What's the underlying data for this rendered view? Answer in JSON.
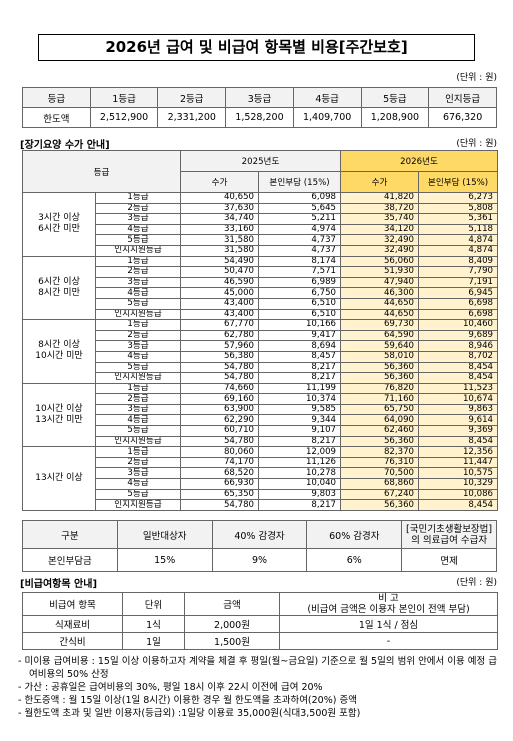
{
  "title": "2026년 급여 및 비급여 항목별 비용[주간보호]",
  "limit_table": {
    "unit": "(단위 : 원)",
    "header": [
      "등급",
      "1등급",
      "2등급",
      "3등급",
      "4등급",
      "5등급",
      "인지등급"
    ],
    "row": [
      "한도액",
      "2,512,900",
      "2,331,200",
      "1,528,200",
      "1,409,700",
      "1,208,900",
      "676,320"
    ]
  },
  "care_fees": {
    "heading": "[장기요양 수가 안내]",
    "unit": "(단위 : 원)",
    "grade_header": "등급",
    "years": [
      "2025년도",
      "2026년도"
    ],
    "subheaders": [
      "수가",
      "본인부담 (15%)",
      "수가",
      "본인부담 (15%)"
    ],
    "groups": [
      {
        "label": [
          "3시간 이상",
          "6시간 미만"
        ],
        "rows": [
          [
            "1등급",
            "40,650",
            "6,098",
            "41,820",
            "6,273"
          ],
          [
            "2등급",
            "37,630",
            "5,645",
            "38,720",
            "5,808"
          ],
          [
            "3등급",
            "34,740",
            "5,211",
            "35,740",
            "5,361"
          ],
          [
            "4등급",
            "33,160",
            "4,974",
            "34,120",
            "5,118"
          ],
          [
            "5등급",
            "31,580",
            "4,737",
            "32,490",
            "4,874"
          ],
          [
            "인지지원등급",
            "31,580",
            "4,737",
            "32,490",
            "4,874"
          ]
        ]
      },
      {
        "label": [
          "6시간 이상",
          "8시간 미만"
        ],
        "rows": [
          [
            "1등급",
            "54,490",
            "8,174",
            "56,060",
            "8,409"
          ],
          [
            "2등급",
            "50,470",
            "7,571",
            "51,930",
            "7,790"
          ],
          [
            "3등급",
            "46,590",
            "6,989",
            "47,940",
            "7,191"
          ],
          [
            "4등급",
            "45,000",
            "6,750",
            "46,300",
            "6,945"
          ],
          [
            "5등급",
            "43,400",
            "6,510",
            "44,650",
            "6,698"
          ],
          [
            "인지지원등급",
            "43,400",
            "6,510",
            "44,650",
            "6,698"
          ]
        ]
      },
      {
        "label": [
          "8시간 이상",
          "10시간 미만"
        ],
        "rows": [
          [
            "1등급",
            "67,770",
            "10,166",
            "69,730",
            "10,460"
          ],
          [
            "2등급",
            "62,780",
            "9,417",
            "64,590",
            "9,689"
          ],
          [
            "3등급",
            "57,960",
            "8,694",
            "59,640",
            "8,946"
          ],
          [
            "4등급",
            "56,380",
            "8,457",
            "58,010",
            "8,702"
          ],
          [
            "5등급",
            "54,780",
            "8,217",
            "56,360",
            "8,454"
          ],
          [
            "인지지원등급",
            "54,780",
            "8,217",
            "56,360",
            "8,454"
          ]
        ]
      },
      {
        "label": [
          "10시간 이상",
          "13시간 미만"
        ],
        "rows": [
          [
            "1등급",
            "74,660",
            "11,199",
            "76,820",
            "11,523"
          ],
          [
            "2등급",
            "69,160",
            "10,374",
            "71,160",
            "10,674"
          ],
          [
            "3등급",
            "63,900",
            "9,585",
            "65,750",
            "9,863"
          ],
          [
            "4등급",
            "62,290",
            "9,344",
            "64,090",
            "9,614"
          ],
          [
            "5등급",
            "60,710",
            "9,107",
            "62,460",
            "9,369"
          ],
          [
            "인지지원등급",
            "54,780",
            "8,217",
            "56,360",
            "8,454"
          ]
        ]
      },
      {
        "label": [
          "13시간 이상"
        ],
        "rows": [
          [
            "1등급",
            "80,060",
            "12,009",
            "82,370",
            "12,356"
          ],
          [
            "2등급",
            "74,170",
            "11,126",
            "76,310",
            "11,447"
          ],
          [
            "3등급",
            "68,520",
            "10,278",
            "70,500",
            "10,575"
          ],
          [
            "4등급",
            "66,930",
            "10,040",
            "68,860",
            "10,329"
          ],
          [
            "5등급",
            "65,350",
            "9,803",
            "67,240",
            "10,086"
          ],
          [
            "인지지원등급",
            "54,780",
            "8,217",
            "56,360",
            "8,454"
          ]
        ]
      }
    ]
  },
  "copay_table": {
    "header": [
      "구분",
      "일반대상자",
      "40% 감경자",
      "60% 감경자",
      [
        "[국민기초생활보장법]",
        "의 의료급여 수급자"
      ]
    ],
    "row": [
      "본인부담금",
      "15%",
      "9%",
      "6%",
      "면제"
    ]
  },
  "non_covered": {
    "heading": "[비급여항목 안내]",
    "unit": "(단위 : 원)",
    "header": [
      "비급여 항목",
      "단위",
      "금액",
      [
        "비 고",
        "(비급여 금액은 이용자 본인이 전액 부담)"
      ]
    ],
    "rows": [
      [
        "식재료비",
        "1식",
        "2,000원",
        "1일 1식 / 점심"
      ],
      [
        "간식비",
        "1일",
        "1,500원",
        "-"
      ]
    ]
  },
  "notes": [
    "- 미이용 급여비용 : 15일 이상 이용하고자 계약을 체결 후 평일(월~금요일) 기준으로 월 5일의 범위 안에서 이용 예정 급여비용의 50% 산정",
    "- 가산 : 공휴일은 급여비용의 30%, 평일 18시 이후 22시 이전에 급여 20%",
    "- 한도증액 : 월 15일 이상(1일 8시간) 이용한 경우 월 한도액을 초과하여(20%) 증액",
    "- 월한도액 초과 및 일반 이용자(등급외) :1일당 이용료 35,000원(식대3,500원 포함)"
  ]
}
